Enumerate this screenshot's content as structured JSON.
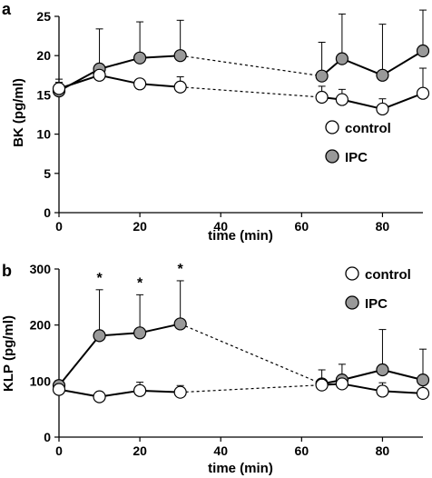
{
  "chart_data": [
    {
      "type": "line",
      "panel_label": "a",
      "xlabel": "time (min)",
      "ylabel": "BK (pg/ml)",
      "xlim": [
        0,
        90
      ],
      "ylim": [
        0,
        25
      ],
      "xticks": [
        0,
        20,
        40,
        60,
        80
      ],
      "yticks": [
        0,
        5,
        10,
        15,
        20,
        25
      ],
      "legend_position": "right-middle",
      "dashed_between": [
        30,
        65
      ],
      "series": [
        {
          "name": "control",
          "fill": "#ffffff",
          "x": [
            0,
            10,
            20,
            30,
            65,
            70,
            80,
            90
          ],
          "y": [
            15.8,
            17.5,
            16.4,
            16.0,
            14.7,
            14.4,
            13.2,
            15.2
          ],
          "err": [
            0.8,
            0.4,
            0,
            1.3,
            1.4,
            1.3,
            1.3,
            3.2
          ]
        },
        {
          "name": "IPC",
          "fill": "#999999",
          "x": [
            0,
            10,
            20,
            30,
            65,
            70,
            80,
            90
          ],
          "y": [
            15.5,
            18.3,
            19.7,
            20.0,
            17.4,
            19.6,
            17.5,
            20.6
          ],
          "err": [
            1.5,
            5.1,
            4.6,
            4.5,
            4.3,
            5.7,
            6.5,
            5.2
          ]
        }
      ]
    },
    {
      "type": "line",
      "panel_label": "b",
      "xlabel": "time (min)",
      "ylabel": "KLP (pg/ml)",
      "xlim": [
        0,
        90
      ],
      "ylim": [
        0,
        300
      ],
      "xticks": [
        0,
        20,
        40,
        60,
        80
      ],
      "yticks": [
        0,
        100,
        200,
        300
      ],
      "legend_position": "top-right",
      "dashed_between": [
        30,
        65
      ],
      "annotations": [
        {
          "x": 10,
          "text": "*"
        },
        {
          "x": 20,
          "text": "*"
        },
        {
          "x": 30,
          "text": "*"
        }
      ],
      "series": [
        {
          "name": "control",
          "fill": "#ffffff",
          "x": [
            0,
            10,
            20,
            30,
            65,
            70,
            80,
            90
          ],
          "y": [
            85,
            72,
            83,
            80,
            93,
            95,
            82,
            78
          ],
          "err": [
            0,
            8,
            15,
            12,
            0,
            10,
            15,
            15
          ]
        },
        {
          "name": "IPC",
          "fill": "#999999",
          "x": [
            0,
            10,
            20,
            30,
            65,
            70,
            80,
            90
          ],
          "y": [
            92,
            181,
            186,
            202,
            95,
            102,
            120,
            102
          ],
          "err": [
            0,
            82,
            68,
            77,
            25,
            28,
            72,
            55
          ]
        }
      ]
    }
  ]
}
